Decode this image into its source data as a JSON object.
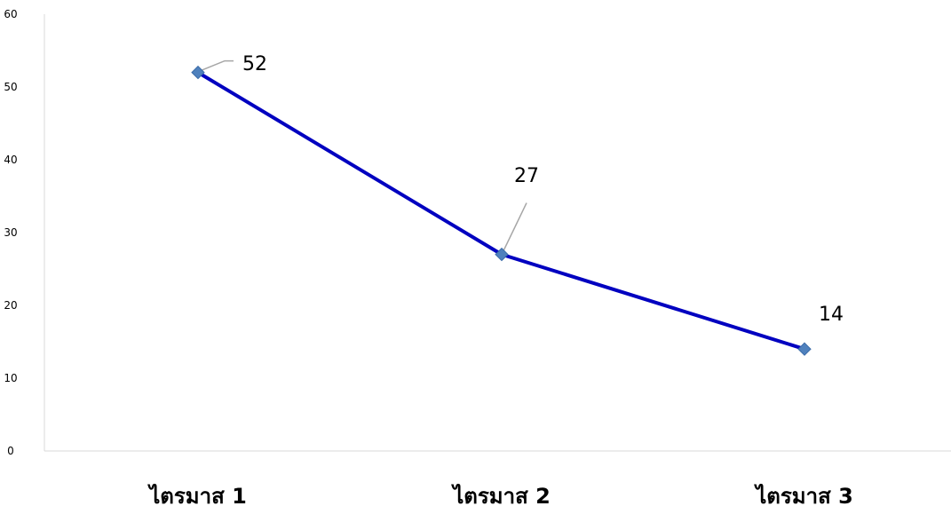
{
  "chart_data": {
    "type": "line",
    "categories": [
      "ไตรมาส 1",
      "ไตรมาส 2",
      "ไตรมาส 3"
    ],
    "series": [
      {
        "values": [
          52,
          27,
          14
        ],
        "color": "#0000C0",
        "marker_color": "#4F81BD",
        "marker": "diamond"
      }
    ],
    "data_labels": [
      "52",
      "27",
      "14"
    ],
    "y_ticks": [
      "0",
      "10",
      "20",
      "30",
      "40",
      "50",
      "60"
    ],
    "ylim": [
      0,
      60
    ],
    "grid": false,
    "legend": "none",
    "title": "",
    "xlabel": "",
    "ylabel": ""
  }
}
